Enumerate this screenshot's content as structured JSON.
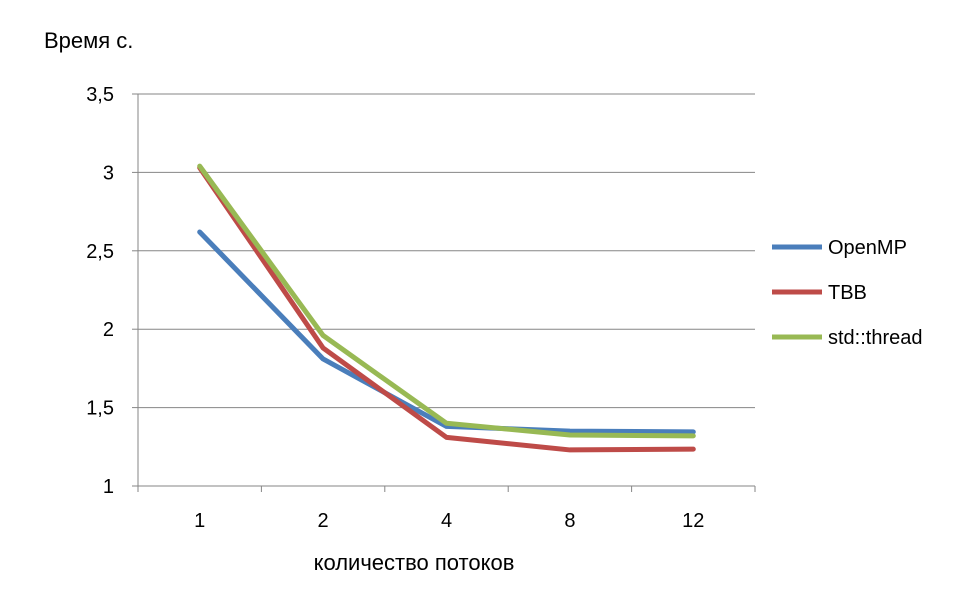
{
  "chart_data": {
    "type": "line",
    "title": "",
    "ylabel": "Время с.",
    "xlabel": "количество потоков",
    "categories": [
      "1",
      "2",
      "4",
      "8",
      "12"
    ],
    "ylim": [
      1,
      3.5
    ],
    "yticks": [
      "1",
      "1,5",
      "2",
      "2,5",
      "3",
      "3,5"
    ],
    "ytick_values": [
      1,
      1.5,
      2,
      2.5,
      3,
      3.5
    ],
    "grid": "horizontal",
    "legend_position": "right",
    "series": [
      {
        "name": "OpenMP",
        "color": "#4a7ebb",
        "values": [
          2.62,
          1.81,
          1.38,
          1.35,
          1.345
        ]
      },
      {
        "name": "TBB",
        "color": "#be4b48",
        "values": [
          3.03,
          1.88,
          1.31,
          1.23,
          1.235
        ]
      },
      {
        "name": "std::thread",
        "color": "#98b954",
        "values": [
          3.04,
          1.96,
          1.4,
          1.325,
          1.32
        ]
      }
    ]
  }
}
